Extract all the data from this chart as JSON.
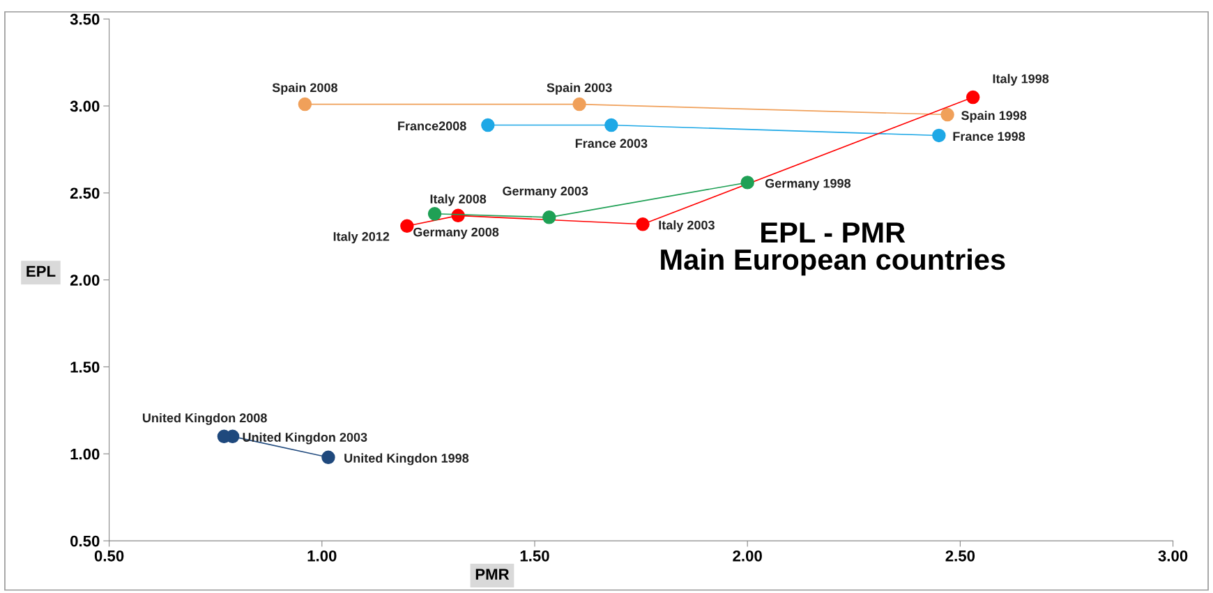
{
  "chart_data": {
    "type": "line",
    "title": "EPL - PMR\nMain European countries",
    "xlabel": "PMR",
    "ylabel": "EPL",
    "xlim": [
      0.5,
      3.0
    ],
    "xticks": [
      {
        "value": 0.5,
        "label": "0.50"
      },
      {
        "value": 1.0,
        "label": "1.00"
      },
      {
        "value": 1.5,
        "label": "1.50"
      },
      {
        "value": 2.0,
        "label": "2.00"
      },
      {
        "value": 2.5,
        "label": "2.50"
      },
      {
        "value": 3.0,
        "label": "3.00"
      }
    ],
    "ylim": [
      0.5,
      3.5
    ],
    "yticks": [
      {
        "value": 0.5,
        "label": "0.50"
      },
      {
        "value": 1.0,
        "label": "1.00"
      },
      {
        "value": 1.5,
        "label": "1.50"
      },
      {
        "value": 2.0,
        "label": "2.00"
      },
      {
        "value": 2.5,
        "label": "2.50"
      },
      {
        "value": 3.0,
        "label": "3.00"
      },
      {
        "value": 3.5,
        "label": "3.50"
      }
    ],
    "grid": false,
    "legend": false,
    "marker": "circle",
    "line_style": "solid",
    "series": [
      {
        "color": "#f0a05a",
        "x": [
          2.47,
          1.605,
          0.96
        ],
        "values": [
          2.95,
          3.01,
          3.01
        ]
      },
      {
        "color": "#1ea8e6",
        "x": [
          2.45,
          1.68,
          1.39
        ],
        "values": [
          2.83,
          2.89,
          2.89
        ]
      },
      {
        "color": "#ff0000",
        "x": [
          2.53,
          1.754,
          1.32,
          1.2
        ],
        "values": [
          3.05,
          2.32,
          2.37,
          2.31
        ]
      },
      {
        "color": "#1fa055",
        "x": [
          2.0,
          1.534,
          1.265
        ],
        "values": [
          2.56,
          2.36,
          2.38
        ]
      },
      {
        "color": "#1f497d",
        "x": [
          1.015,
          0.79,
          0.77
        ],
        "values": [
          0.98,
          1.1,
          1.1
        ]
      }
    ],
    "annotations": [
      {
        "text": "Spain 2008",
        "x": 0.96,
        "y": 3.01
      },
      {
        "text": "Spain 2003",
        "x": 1.605,
        "y": 3.01
      },
      {
        "text": "Spain 1998",
        "x": 2.47,
        "y": 2.95
      },
      {
        "text": "France2008",
        "x": 1.39,
        "y": 2.89
      },
      {
        "text": "France 2003",
        "x": 1.68,
        "y": 2.89
      },
      {
        "text": "France 1998",
        "x": 2.45,
        "y": 2.83
      },
      {
        "text": "Italy 1998",
        "x": 2.53,
        "y": 3.05
      },
      {
        "text": "Italy 2003",
        "x": 1.754,
        "y": 2.32
      },
      {
        "text": "Italy 2008",
        "x": 1.32,
        "y": 2.37
      },
      {
        "text": "Italy 2012",
        "x": 1.2,
        "y": 2.31
      },
      {
        "text": "Germany 1998",
        "x": 2.0,
        "y": 2.56
      },
      {
        "text": "Germany 2003",
        "x": 1.534,
        "y": 2.36
      },
      {
        "text": "Germany 2008",
        "x": 1.265,
        "y": 2.38
      },
      {
        "text": "United Kingdon 2008",
        "x": 0.77,
        "y": 1.1
      },
      {
        "text": "United Kingdon 2003",
        "x": 0.79,
        "y": 1.1
      },
      {
        "text": "United Kingdon 1998",
        "x": 1.015,
        "y": 0.98
      }
    ]
  }
}
